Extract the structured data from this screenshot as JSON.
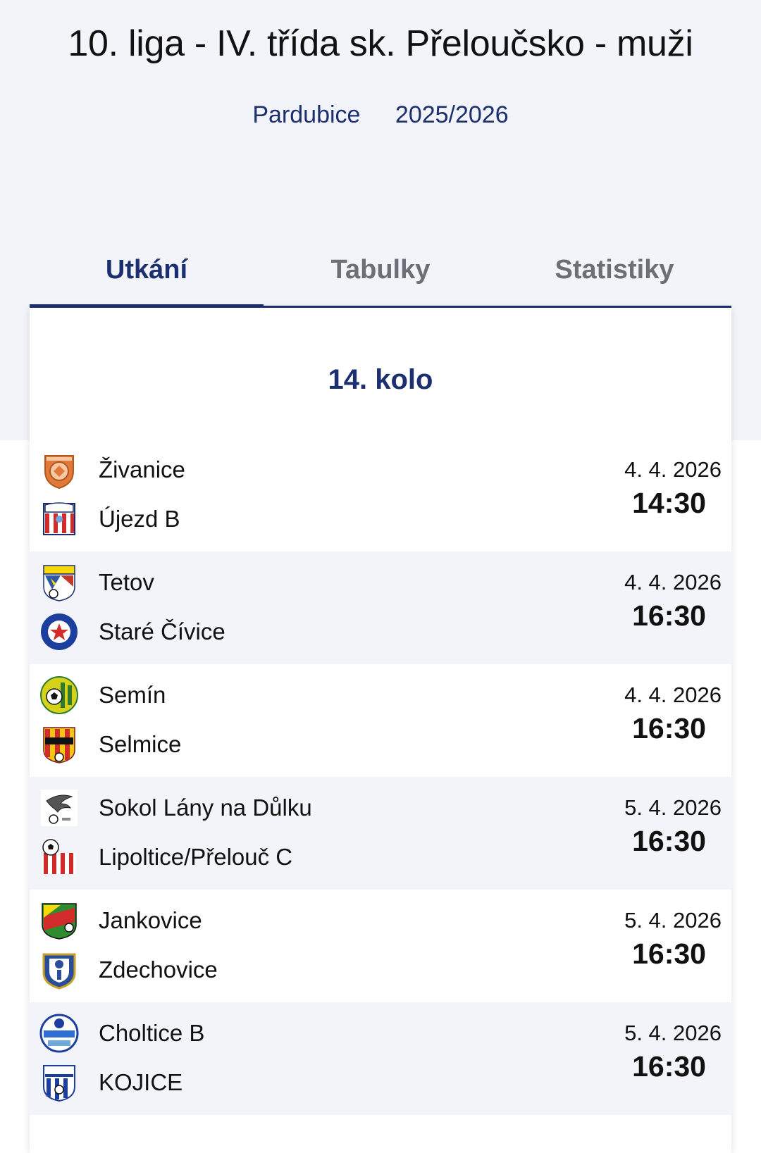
{
  "header": {
    "title": "10. liga - IV. třída sk. Přeloučsko - muži",
    "region": "Pardubice",
    "season": "2025/2026"
  },
  "tabs": [
    {
      "label": "Utkání",
      "active": true
    },
    {
      "label": "Tabulky",
      "active": false
    },
    {
      "label": "Statistiky",
      "active": false
    }
  ],
  "round": {
    "title": "14. kolo"
  },
  "matches": [
    {
      "home": "Živanice",
      "away": "Újezd B",
      "date": "4. 4. 2026",
      "time": "14:30",
      "home_logo": "orange-ball-crest-icon",
      "away_logo": "red-white-striped-shield-icon"
    },
    {
      "home": "Tetov",
      "away": "Staré Čívice",
      "date": "4. 4. 2026",
      "time": "16:30",
      "home_logo": "yellow-blue-shield-icon",
      "away_logo": "blue-ring-red-star-icon"
    },
    {
      "home": "Semín",
      "away": "Selmice",
      "date": "4. 4. 2026",
      "time": "16:30",
      "home_logo": "green-yellow-round-crest-icon",
      "away_logo": "red-yellow-striped-shield-icon"
    },
    {
      "home": "Sokol Lány na Důlku",
      "away": "Lipoltice/Přelouč C",
      "date": "5. 4. 2026",
      "time": "16:30",
      "home_logo": "eagle-crest-icon",
      "away_logo": "red-white-ball-shield-icon"
    },
    {
      "home": "Jankovice",
      "away": "Zdechovice",
      "date": "5. 4. 2026",
      "time": "16:30",
      "home_logo": "green-red-yellow-shield-icon",
      "away_logo": "blue-gold-shield-icon"
    },
    {
      "home": "Choltice B",
      "away": "KOJICE",
      "date": "5. 4. 2026",
      "time": "16:30",
      "home_logo": "blue-round-crest-icon",
      "away_logo": "blue-white-striped-shield-icon"
    }
  ],
  "colors": {
    "accent": "#1c2f6e",
    "band": "#f2f4f9",
    "inactive_tab": "#6b6f76"
  }
}
